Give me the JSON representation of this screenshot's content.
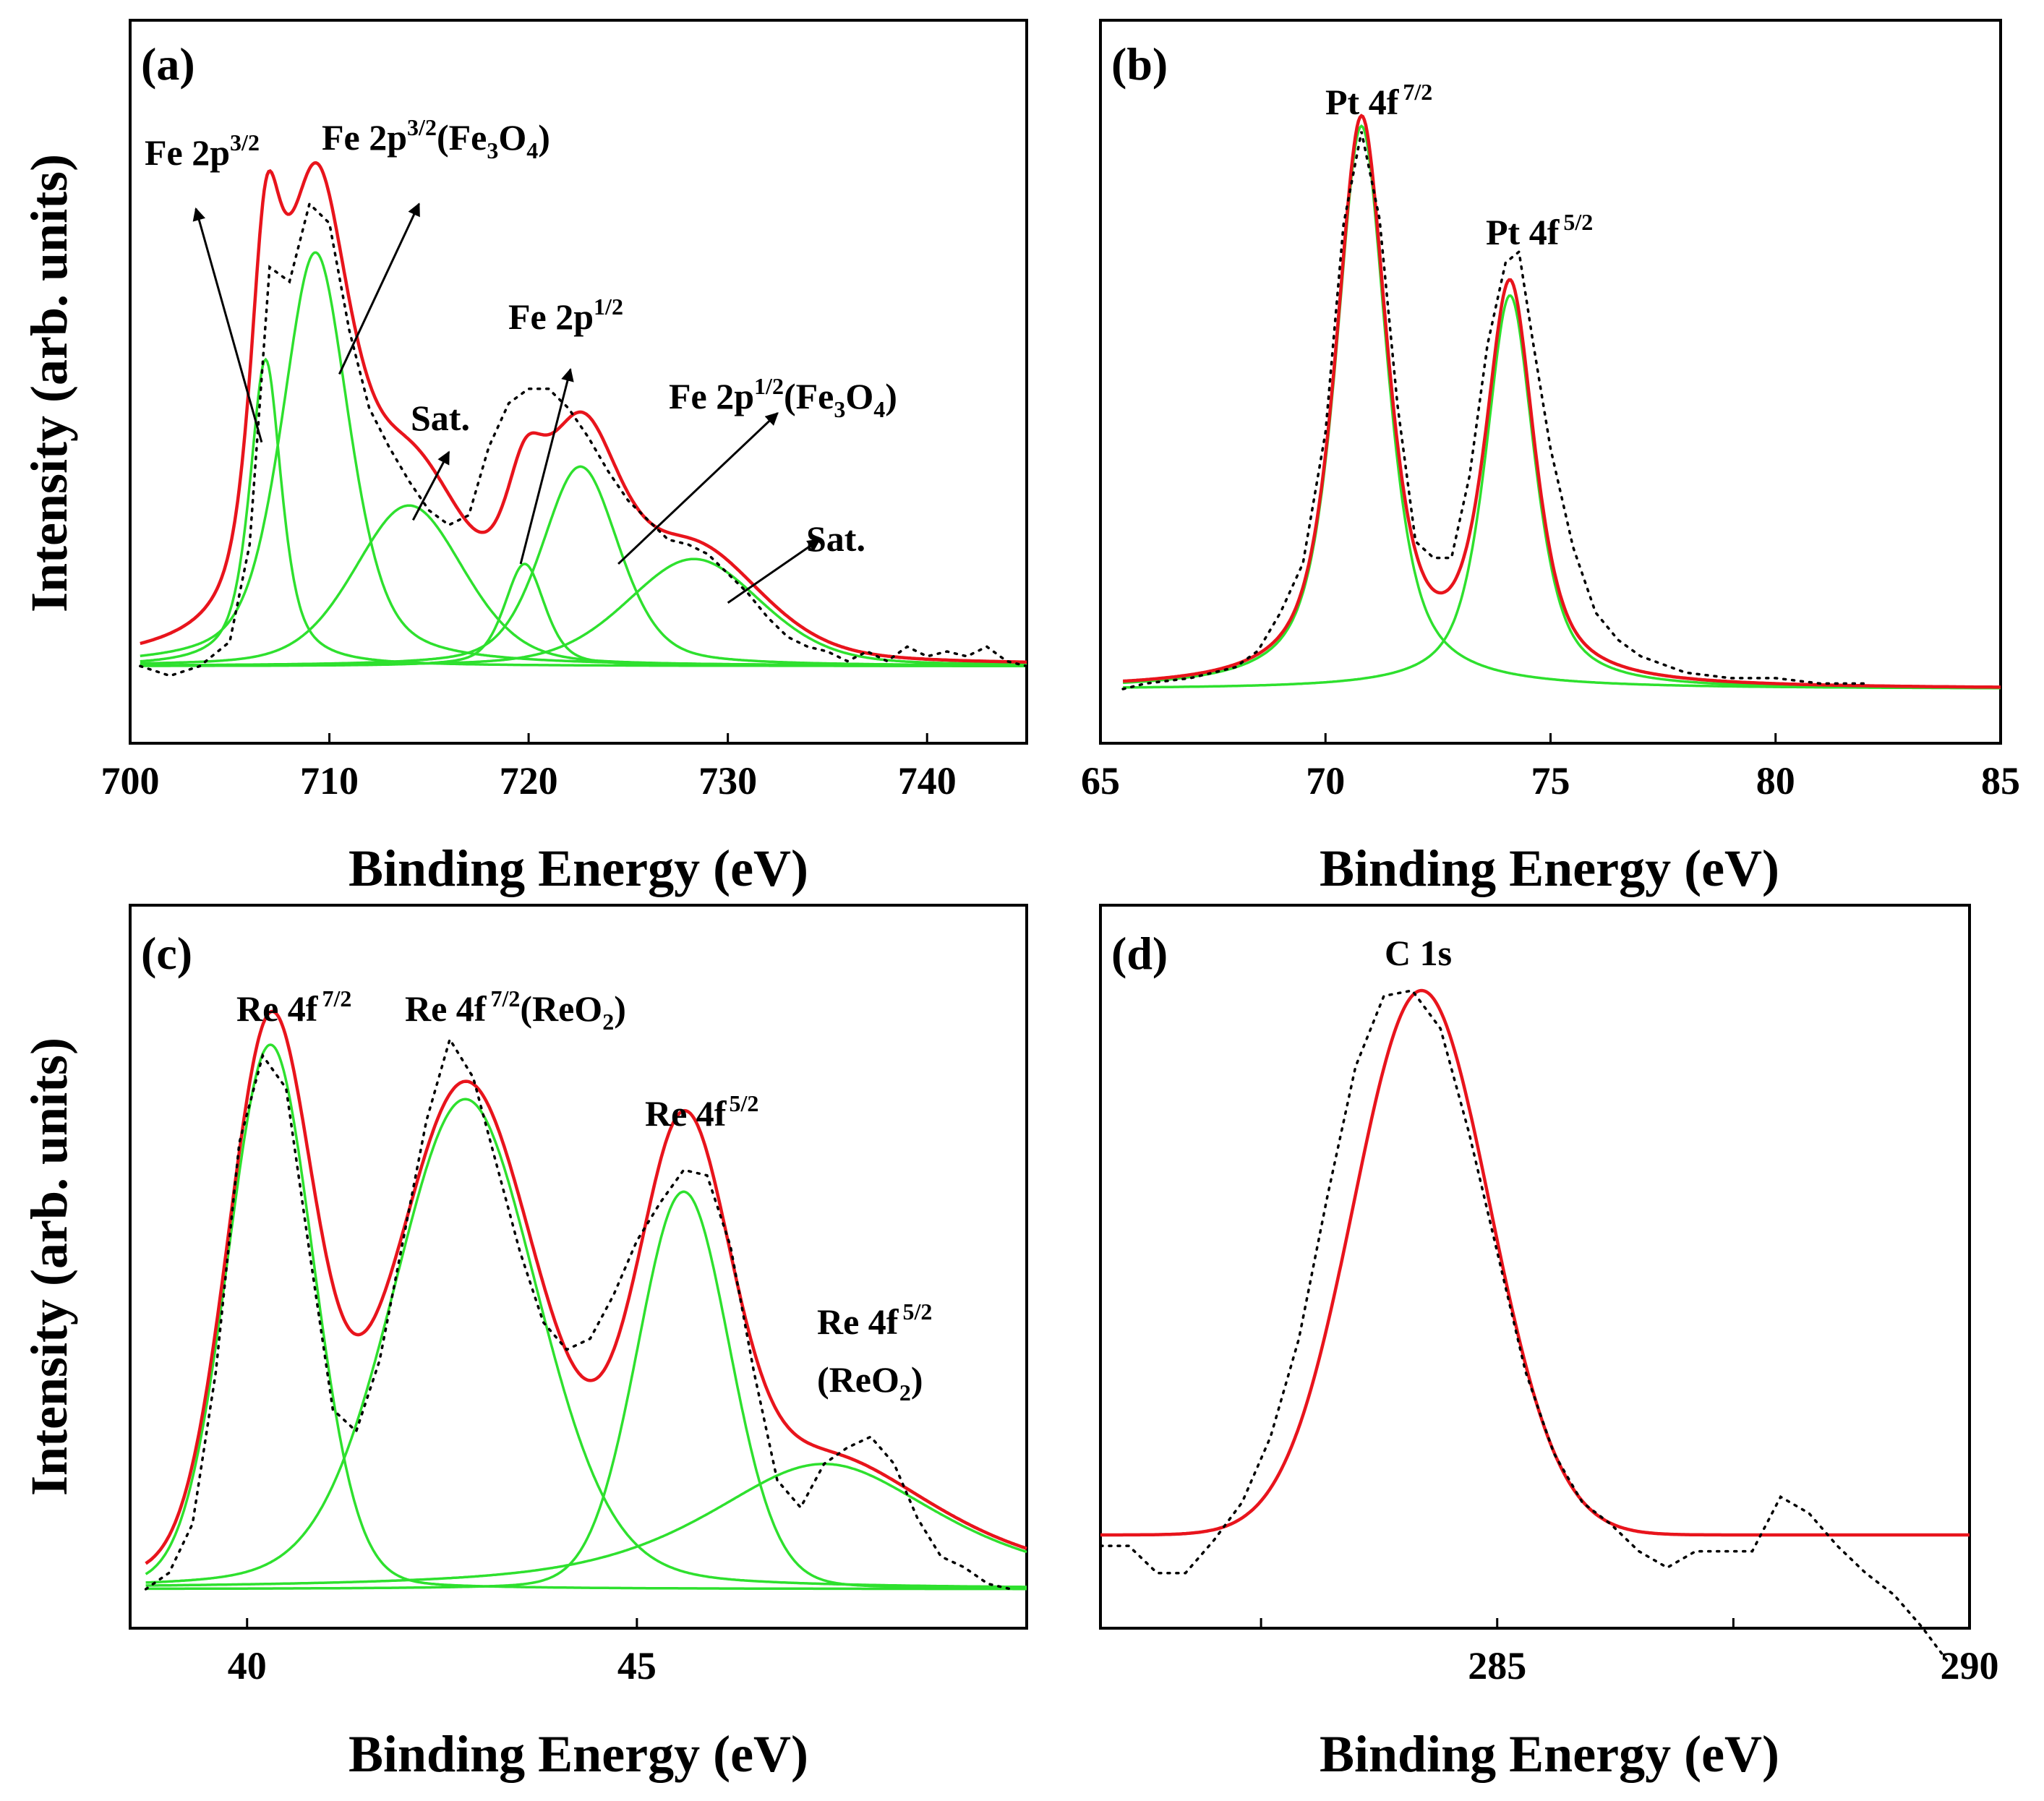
{
  "colors": {
    "total_fit": "#e8141c",
    "component_fit": "#2ee02e",
    "raw": "#000000"
  },
  "chart_data": [
    {
      "panel": "(a)",
      "type": "line",
      "xlabel": "Binding Energy (eV)",
      "ylabel": "Intensity (arb. units)",
      "xlim": [
        700,
        745
      ],
      "ylim": [
        -0.12,
        1.1
      ],
      "xticks": [
        700,
        710,
        720,
        730,
        740
      ],
      "baseline": 0.01,
      "components": [
        {
          "name": "Fe 2p3/2",
          "center": 706.8,
          "height": 0.63,
          "fwhm": 1.9,
          "eta": 0.7
        },
        {
          "name": "Fe 2p3/2(Fe3O4)",
          "center": 709.3,
          "height": 0.85,
          "fwhm": 4.0,
          "eta": 0.5
        },
        {
          "name": "Sat.",
          "center": 714.0,
          "height": 0.33,
          "fwhm": 6.5,
          "eta": 0.3
        },
        {
          "name": "Fe 2p1/2",
          "center": 719.8,
          "height": 0.21,
          "fwhm": 2.4,
          "eta": 0.5
        },
        {
          "name": "Fe 2p1/2(Fe3O4)",
          "center": 722.6,
          "height": 0.41,
          "fwhm": 4.6,
          "eta": 0.4
        },
        {
          "name": "Sat.",
          "center": 728.3,
          "height": 0.22,
          "fwhm": 8.0,
          "eta": 0.3
        }
      ],
      "raw": {
        "x": [
          700.5,
          702,
          703.5,
          705,
          706,
          707,
          708,
          709,
          710,
          711,
          712,
          713,
          714,
          715,
          716,
          717,
          718,
          719,
          720,
          721,
          722,
          723,
          724,
          725,
          726,
          727,
          728,
          729,
          730,
          731,
          732,
          733,
          734,
          735,
          736,
          737,
          738,
          739,
          740,
          741,
          742,
          743,
          744,
          745
        ],
        "y": [
          0.01,
          -0.01,
          0.01,
          0.06,
          0.26,
          0.83,
          0.8,
          0.96,
          0.92,
          0.7,
          0.54,
          0.46,
          0.39,
          0.33,
          0.3,
          0.32,
          0.46,
          0.55,
          0.58,
          0.58,
          0.54,
          0.48,
          0.41,
          0.35,
          0.31,
          0.27,
          0.26,
          0.24,
          0.2,
          0.16,
          0.11,
          0.07,
          0.05,
          0.04,
          0.02,
          0.04,
          0.02,
          0.05,
          0.03,
          0.04,
          0.03,
          0.05,
          0.02,
          0.01
        ]
      },
      "annotations": [
        {
          "text": "Fe 2p",
          "sup": "3/2",
          "tail": [
            706.6,
            0.47
          ],
          "head": [
            703.3,
            0.95
          ]
        },
        {
          "text": "Fe 2p",
          "sup": "3/2",
          "sub": "",
          "suffix_text": "(Fe",
          "sub2": "3",
          "mid": "O",
          "sub3": "4",
          "end": ")",
          "tail": [
            710.5,
            0.61
          ],
          "head": [
            714.5,
            0.96
          ]
        },
        {
          "text": "Sat.",
          "tail": [
            714.2,
            0.31
          ],
          "head": [
            716.0,
            0.45
          ]
        },
        {
          "text": "Fe 2p",
          "sup": "1/2",
          "tail": [
            719.6,
            0.22
          ],
          "head": [
            722.1,
            0.62
          ]
        },
        {
          "text": "Fe 2p",
          "sup": "1/2",
          "suffix_text": "(Fe",
          "sub2": "3",
          "mid": "O",
          "sub3": "4",
          "end": ")",
          "tail": [
            724.5,
            0.22
          ],
          "head": [
            732.5,
            0.53
          ]
        },
        {
          "text": "Sat.",
          "tail": [
            730.0,
            0.14
          ],
          "head": [
            734.6,
            0.27
          ]
        }
      ]
    },
    {
      "panel": "(b)",
      "type": "line",
      "xlabel": "Binding Energy (eV)",
      "ylabel": "",
      "xlim": [
        65,
        85
      ],
      "ylim": [
        -0.12,
        1.25
      ],
      "xticks": [
        65,
        70,
        75,
        80,
        85
      ],
      "baseline": 0.0,
      "components": [
        {
          "name": "Pt 4f7/2",
          "center": 70.8,
          "height": 1.03,
          "fwhm": 1.35,
          "eta": 0.7
        },
        {
          "name": "Pt 4f5/2",
          "center": 74.1,
          "height": 0.72,
          "fwhm": 1.3,
          "eta": 0.7
        }
      ],
      "raw": {
        "x": [
          65.5,
          66,
          67,
          68,
          68.5,
          69,
          69.5,
          70,
          70.4,
          70.8,
          71.2,
          71.6,
          72,
          72.4,
          72.8,
          73.2,
          73.6,
          74,
          74.3,
          74.6,
          75,
          75.5,
          76,
          76.5,
          77,
          78,
          79,
          80,
          81,
          82
        ],
        "y": [
          0.0,
          0.01,
          0.02,
          0.04,
          0.07,
          0.14,
          0.23,
          0.47,
          0.85,
          1.02,
          0.86,
          0.52,
          0.27,
          0.24,
          0.24,
          0.39,
          0.63,
          0.78,
          0.8,
          0.64,
          0.44,
          0.26,
          0.14,
          0.09,
          0.06,
          0.03,
          0.02,
          0.02,
          0.01,
          0.01
        ]
      },
      "annotations": [
        {
          "text": "Pt 4f",
          "sup": "7/2"
        },
        {
          "text": "Pt 4f",
          "sup": "5/2"
        }
      ]
    },
    {
      "panel": "(c)",
      "type": "line",
      "xlabel": "Binding Energy (eV)",
      "ylabel": "Intensity (arb. units)",
      "xlim": [
        38.5,
        50
      ],
      "ylim": [
        -0.1,
        1.25
      ],
      "xticks": [
        40,
        45
      ],
      "baseline": 0.0,
      "components": [
        {
          "name": "Re 4f7/2",
          "center": 40.3,
          "height": 1.0,
          "fwhm": 1.3,
          "eta": 0.1
        },
        {
          "name": "Re 4f7/2(ReO2)",
          "center": 42.8,
          "height": 0.9,
          "fwhm": 2.2,
          "eta": 0.2
        },
        {
          "name": "Re 4f5/2",
          "center": 45.6,
          "height": 0.73,
          "fwhm": 1.4,
          "eta": 0.1
        },
        {
          "name": "Re 4f5/2(ReO2)",
          "center": 47.4,
          "height": 0.23,
          "fwhm": 3.6,
          "eta": 0.7
        }
      ],
      "raw": {
        "x": [
          38.7,
          39,
          39.3,
          39.6,
          39.9,
          40.2,
          40.5,
          40.8,
          41.1,
          41.4,
          41.7,
          42,
          42.3,
          42.6,
          42.9,
          43.2,
          43.5,
          43.8,
          44.1,
          44.4,
          44.7,
          45,
          45.3,
          45.6,
          45.9,
          46.2,
          46.5,
          46.8,
          47.1,
          47.4,
          47.7,
          48,
          48.3,
          48.6,
          48.9,
          49.2,
          49.5,
          49.8
        ],
        "y": [
          0.0,
          0.03,
          0.12,
          0.4,
          0.82,
          0.98,
          0.92,
          0.62,
          0.33,
          0.29,
          0.42,
          0.64,
          0.86,
          1.01,
          0.94,
          0.78,
          0.62,
          0.49,
          0.44,
          0.46,
          0.54,
          0.64,
          0.71,
          0.77,
          0.76,
          0.63,
          0.4,
          0.2,
          0.15,
          0.23,
          0.26,
          0.28,
          0.23,
          0.13,
          0.06,
          0.04,
          0.01,
          0.0
        ]
      },
      "annotations": [
        {
          "text": "Re 4f",
          "sup": "7/2"
        },
        {
          "text": "Re 4f",
          "sup": "7/2",
          "suffix_text": "(ReO",
          "sub2": "2",
          "end": ")"
        },
        {
          "text": "Re 4f",
          "sup": "5/2"
        },
        {
          "text": "Re 4f",
          "sup": "5/2",
          "line2": "(ReO",
          "sub2": "2",
          "end": ")"
        }
      ]
    },
    {
      "panel": "(d)",
      "type": "line",
      "xlabel": "Binding Energy (eV)",
      "ylabel": "",
      "xlim": [
        280.8,
        290
      ],
      "ylim": [
        -0.25,
        1.15
      ],
      "xticks": [
        285,
        290
      ],
      "minor_xticks": [
        282.5,
        287.5
      ],
      "baseline": 0.0,
      "components": [
        {
          "name": "C 1s",
          "center": 284.2,
          "height": 1.0,
          "fwhm": 1.7,
          "eta": 0.0
        }
      ],
      "raw": {
        "x": [
          280.8,
          281.1,
          281.4,
          281.7,
          282,
          282.3,
          282.6,
          282.9,
          283.2,
          283.5,
          283.8,
          284.1,
          284.4,
          284.7,
          285,
          285.3,
          285.6,
          285.9,
          286.2,
          286.5,
          286.8,
          287.1,
          287.4,
          287.7,
          288,
          288.3,
          288.6,
          288.9,
          289.2,
          289.5,
          289.8
        ],
        "y": [
          -0.02,
          -0.02,
          -0.07,
          -0.07,
          -0.01,
          0.06,
          0.18,
          0.36,
          0.62,
          0.86,
          0.99,
          1.0,
          0.93,
          0.74,
          0.52,
          0.3,
          0.15,
          0.06,
          0.02,
          -0.03,
          -0.06,
          -0.03,
          -0.03,
          -0.03,
          0.07,
          0.04,
          -0.02,
          -0.07,
          -0.11,
          -0.17,
          -0.24
        ]
      },
      "annotations": [
        {
          "text": "C 1s"
        }
      ]
    }
  ]
}
